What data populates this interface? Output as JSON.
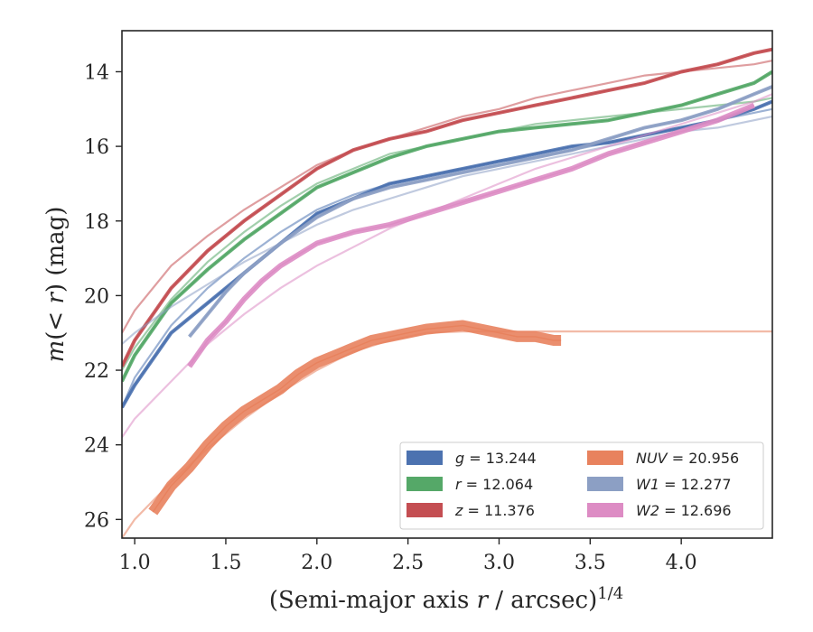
{
  "chart_data": {
    "type": "line",
    "xlabel": "(Semi-major axis r / arcsec)^1/4",
    "ylabel": "m(< r) (mag)",
    "xlim": [
      0.93,
      4.5
    ],
    "ylim": [
      26.5,
      12.9
    ],
    "y_inverted": true,
    "grid": false,
    "legend_position": "lower-right",
    "x_ticks": [
      1.0,
      1.5,
      2.0,
      2.5,
      3.0,
      3.5,
      4.0
    ],
    "x_tick_labels": [
      "1.0",
      "1.5",
      "2.0",
      "2.5",
      "3.0",
      "3.5",
      "4.0"
    ],
    "y_ticks": [
      14,
      16,
      18,
      20,
      22,
      24,
      26
    ],
    "y_tick_labels": [
      "14",
      "16",
      "18",
      "20",
      "22",
      "24",
      "26"
    ],
    "series": [
      {
        "name": "g = 13.244",
        "legend_label": "g = 13.244",
        "color": "#4c72b0",
        "band": true,
        "observed": [
          [
            0.93,
            23.0
          ],
          [
            1.0,
            22.4
          ],
          [
            1.2,
            21.0
          ],
          [
            1.4,
            20.2
          ],
          [
            1.6,
            19.4
          ],
          [
            1.8,
            18.6
          ],
          [
            2.0,
            17.8
          ],
          [
            2.2,
            17.4
          ],
          [
            2.4,
            17.0
          ],
          [
            2.6,
            16.8
          ],
          [
            2.8,
            16.6
          ],
          [
            3.0,
            16.4
          ],
          [
            3.2,
            16.2
          ],
          [
            3.4,
            16.0
          ],
          [
            3.6,
            15.9
          ],
          [
            3.8,
            15.7
          ],
          [
            4.0,
            15.5
          ],
          [
            4.2,
            15.3
          ],
          [
            4.4,
            15.0
          ],
          [
            4.5,
            14.8
          ]
        ],
        "model": [
          [
            0.93,
            23.0
          ],
          [
            1.0,
            22.2
          ],
          [
            1.2,
            20.8
          ],
          [
            1.4,
            19.8
          ],
          [
            1.6,
            19.0
          ],
          [
            1.8,
            18.3
          ],
          [
            2.0,
            17.7
          ],
          [
            2.2,
            17.3
          ],
          [
            2.4,
            17.0
          ],
          [
            2.6,
            16.8
          ],
          [
            2.8,
            16.6
          ],
          [
            3.0,
            16.4
          ],
          [
            3.2,
            16.3
          ],
          [
            3.4,
            16.1
          ],
          [
            3.6,
            15.9
          ],
          [
            3.8,
            15.7
          ],
          [
            4.0,
            15.5
          ],
          [
            4.2,
            15.3
          ],
          [
            4.4,
            15.1
          ],
          [
            4.5,
            15.0
          ]
        ]
      },
      {
        "name": "r = 12.064",
        "legend_label": "r = 12.064",
        "color": "#55a868",
        "band": true,
        "observed": [
          [
            0.93,
            22.3
          ],
          [
            1.0,
            21.6
          ],
          [
            1.2,
            20.2
          ],
          [
            1.4,
            19.3
          ],
          [
            1.6,
            18.5
          ],
          [
            1.8,
            17.8
          ],
          [
            2.0,
            17.1
          ],
          [
            2.2,
            16.7
          ],
          [
            2.4,
            16.3
          ],
          [
            2.6,
            16.0
          ],
          [
            2.8,
            15.8
          ],
          [
            3.0,
            15.6
          ],
          [
            3.2,
            15.5
          ],
          [
            3.4,
            15.4
          ],
          [
            3.6,
            15.3
          ],
          [
            3.8,
            15.1
          ],
          [
            4.0,
            14.9
          ],
          [
            4.2,
            14.6
          ],
          [
            4.4,
            14.3
          ],
          [
            4.5,
            14.0
          ]
        ],
        "model": [
          [
            0.93,
            22.0
          ],
          [
            1.0,
            21.4
          ],
          [
            1.2,
            20.1
          ],
          [
            1.4,
            19.1
          ],
          [
            1.6,
            18.3
          ],
          [
            1.8,
            17.6
          ],
          [
            2.0,
            17.0
          ],
          [
            2.2,
            16.6
          ],
          [
            2.4,
            16.2
          ],
          [
            2.6,
            16.0
          ],
          [
            2.8,
            15.8
          ],
          [
            3.0,
            15.6
          ],
          [
            3.2,
            15.4
          ],
          [
            3.4,
            15.3
          ],
          [
            3.6,
            15.2
          ],
          [
            3.8,
            15.1
          ],
          [
            4.0,
            15.0
          ],
          [
            4.2,
            14.9
          ],
          [
            4.4,
            14.8
          ],
          [
            4.5,
            14.7
          ]
        ]
      },
      {
        "name": "z = 11.376",
        "legend_label": "z = 11.376",
        "color": "#c44e52",
        "band": true,
        "observed": [
          [
            0.93,
            21.9
          ],
          [
            1.0,
            21.2
          ],
          [
            1.2,
            19.8
          ],
          [
            1.4,
            18.8
          ],
          [
            1.6,
            18.0
          ],
          [
            1.8,
            17.3
          ],
          [
            2.0,
            16.6
          ],
          [
            2.2,
            16.1
          ],
          [
            2.4,
            15.8
          ],
          [
            2.6,
            15.6
          ],
          [
            2.8,
            15.3
          ],
          [
            3.0,
            15.1
          ],
          [
            3.2,
            14.9
          ],
          [
            3.4,
            14.7
          ],
          [
            3.6,
            14.5
          ],
          [
            3.8,
            14.3
          ],
          [
            4.0,
            14.0
          ],
          [
            4.2,
            13.8
          ],
          [
            4.4,
            13.5
          ],
          [
            4.5,
            13.4
          ]
        ],
        "model": [
          [
            0.93,
            21.0
          ],
          [
            1.0,
            20.4
          ],
          [
            1.2,
            19.2
          ],
          [
            1.4,
            18.4
          ],
          [
            1.6,
            17.7
          ],
          [
            1.8,
            17.1
          ],
          [
            2.0,
            16.5
          ],
          [
            2.2,
            16.1
          ],
          [
            2.4,
            15.8
          ],
          [
            2.6,
            15.5
          ],
          [
            2.8,
            15.2
          ],
          [
            3.0,
            15.0
          ],
          [
            3.2,
            14.7
          ],
          [
            3.4,
            14.5
          ],
          [
            3.6,
            14.3
          ],
          [
            3.8,
            14.1
          ],
          [
            4.0,
            14.0
          ],
          [
            4.2,
            13.9
          ],
          [
            4.4,
            13.8
          ],
          [
            4.5,
            13.7
          ]
        ]
      },
      {
        "name": "NUV = 20.956",
        "legend_label": "NUV = 20.956",
        "color": "#e8825e",
        "band": true,
        "observed": [
          [
            1.1,
            25.8
          ],
          [
            1.2,
            25.1
          ],
          [
            1.3,
            24.6
          ],
          [
            1.4,
            24.0
          ],
          [
            1.5,
            23.5
          ],
          [
            1.6,
            23.1
          ],
          [
            1.7,
            22.8
          ],
          [
            1.8,
            22.5
          ],
          [
            1.9,
            22.1
          ],
          [
            2.0,
            21.8
          ],
          [
            2.1,
            21.6
          ],
          [
            2.2,
            21.4
          ],
          [
            2.3,
            21.2
          ],
          [
            2.4,
            21.1
          ],
          [
            2.5,
            21.0
          ],
          [
            2.6,
            20.9
          ],
          [
            2.7,
            20.85
          ],
          [
            2.8,
            20.8
          ],
          [
            2.9,
            20.9
          ],
          [
            3.0,
            21.0
          ],
          [
            3.1,
            21.1
          ],
          [
            3.2,
            21.1
          ],
          [
            3.3,
            21.2
          ],
          [
            3.34,
            21.2
          ]
        ],
        "model": [
          [
            0.93,
            26.5
          ],
          [
            1.0,
            26.0
          ],
          [
            1.2,
            25.0
          ],
          [
            1.4,
            24.1
          ],
          [
            1.6,
            23.3
          ],
          [
            1.8,
            22.6
          ],
          [
            2.0,
            22.0
          ],
          [
            2.2,
            21.5
          ],
          [
            2.4,
            21.2
          ],
          [
            2.6,
            21.0
          ],
          [
            2.8,
            20.96
          ],
          [
            3.0,
            20.96
          ],
          [
            3.5,
            20.96
          ],
          [
            4.0,
            20.96
          ],
          [
            4.5,
            20.96
          ]
        ]
      },
      {
        "name": "W1 = 12.277",
        "legend_label": "W1 = 12.277",
        "color": "#8c9fc4",
        "band": true,
        "observed": [
          [
            1.3,
            21.1
          ],
          [
            1.4,
            20.5
          ],
          [
            1.5,
            19.9
          ],
          [
            1.6,
            19.4
          ],
          [
            1.8,
            18.6
          ],
          [
            2.0,
            17.9
          ],
          [
            2.2,
            17.4
          ],
          [
            2.4,
            17.1
          ],
          [
            2.6,
            16.9
          ],
          [
            2.8,
            16.7
          ],
          [
            3.0,
            16.5
          ],
          [
            3.2,
            16.3
          ],
          [
            3.4,
            16.1
          ],
          [
            3.6,
            15.8
          ],
          [
            3.8,
            15.5
          ],
          [
            4.0,
            15.3
          ],
          [
            4.2,
            15.0
          ],
          [
            4.4,
            14.6
          ],
          [
            4.5,
            14.4
          ]
        ],
        "model": [
          [
            0.93,
            21.3
          ],
          [
            1.0,
            21.0
          ],
          [
            1.2,
            20.3
          ],
          [
            1.4,
            19.7
          ],
          [
            1.6,
            19.1
          ],
          [
            1.8,
            18.6
          ],
          [
            2.0,
            18.1
          ],
          [
            2.2,
            17.7
          ],
          [
            2.4,
            17.4
          ],
          [
            2.6,
            17.1
          ],
          [
            2.8,
            16.8
          ],
          [
            3.0,
            16.6
          ],
          [
            3.2,
            16.4
          ],
          [
            3.4,
            16.2
          ],
          [
            3.6,
            16.0
          ],
          [
            3.8,
            15.8
          ],
          [
            4.0,
            15.6
          ],
          [
            4.2,
            15.5
          ],
          [
            4.4,
            15.3
          ],
          [
            4.5,
            15.2
          ]
        ]
      },
      {
        "name": "W2 = 12.696",
        "legend_label": "W2 = 12.696",
        "color": "#dd8cc4",
        "band": true,
        "observed": [
          [
            1.3,
            21.9
          ],
          [
            1.4,
            21.2
          ],
          [
            1.5,
            20.7
          ],
          [
            1.6,
            20.1
          ],
          [
            1.7,
            19.6
          ],
          [
            1.8,
            19.2
          ],
          [
            1.9,
            18.9
          ],
          [
            2.0,
            18.6
          ],
          [
            2.2,
            18.3
          ],
          [
            2.4,
            18.1
          ],
          [
            2.6,
            17.8
          ],
          [
            2.8,
            17.5
          ],
          [
            3.0,
            17.2
          ],
          [
            3.2,
            16.9
          ],
          [
            3.4,
            16.6
          ],
          [
            3.6,
            16.2
          ],
          [
            3.8,
            15.9
          ],
          [
            4.0,
            15.6
          ],
          [
            4.2,
            15.3
          ],
          [
            4.4,
            14.9
          ]
        ],
        "model": [
          [
            0.93,
            23.8
          ],
          [
            1.0,
            23.3
          ],
          [
            1.2,
            22.3
          ],
          [
            1.4,
            21.3
          ],
          [
            1.6,
            20.5
          ],
          [
            1.8,
            19.8
          ],
          [
            2.0,
            19.2
          ],
          [
            2.2,
            18.7
          ],
          [
            2.4,
            18.2
          ],
          [
            2.6,
            17.8
          ],
          [
            2.8,
            17.4
          ],
          [
            3.0,
            17.0
          ],
          [
            3.2,
            16.6
          ],
          [
            3.4,
            16.3
          ],
          [
            3.6,
            16.0
          ],
          [
            3.8,
            15.7
          ],
          [
            4.0,
            15.4
          ],
          [
            4.2,
            15.1
          ],
          [
            4.4,
            14.8
          ],
          [
            4.5,
            14.6
          ]
        ]
      }
    ]
  }
}
